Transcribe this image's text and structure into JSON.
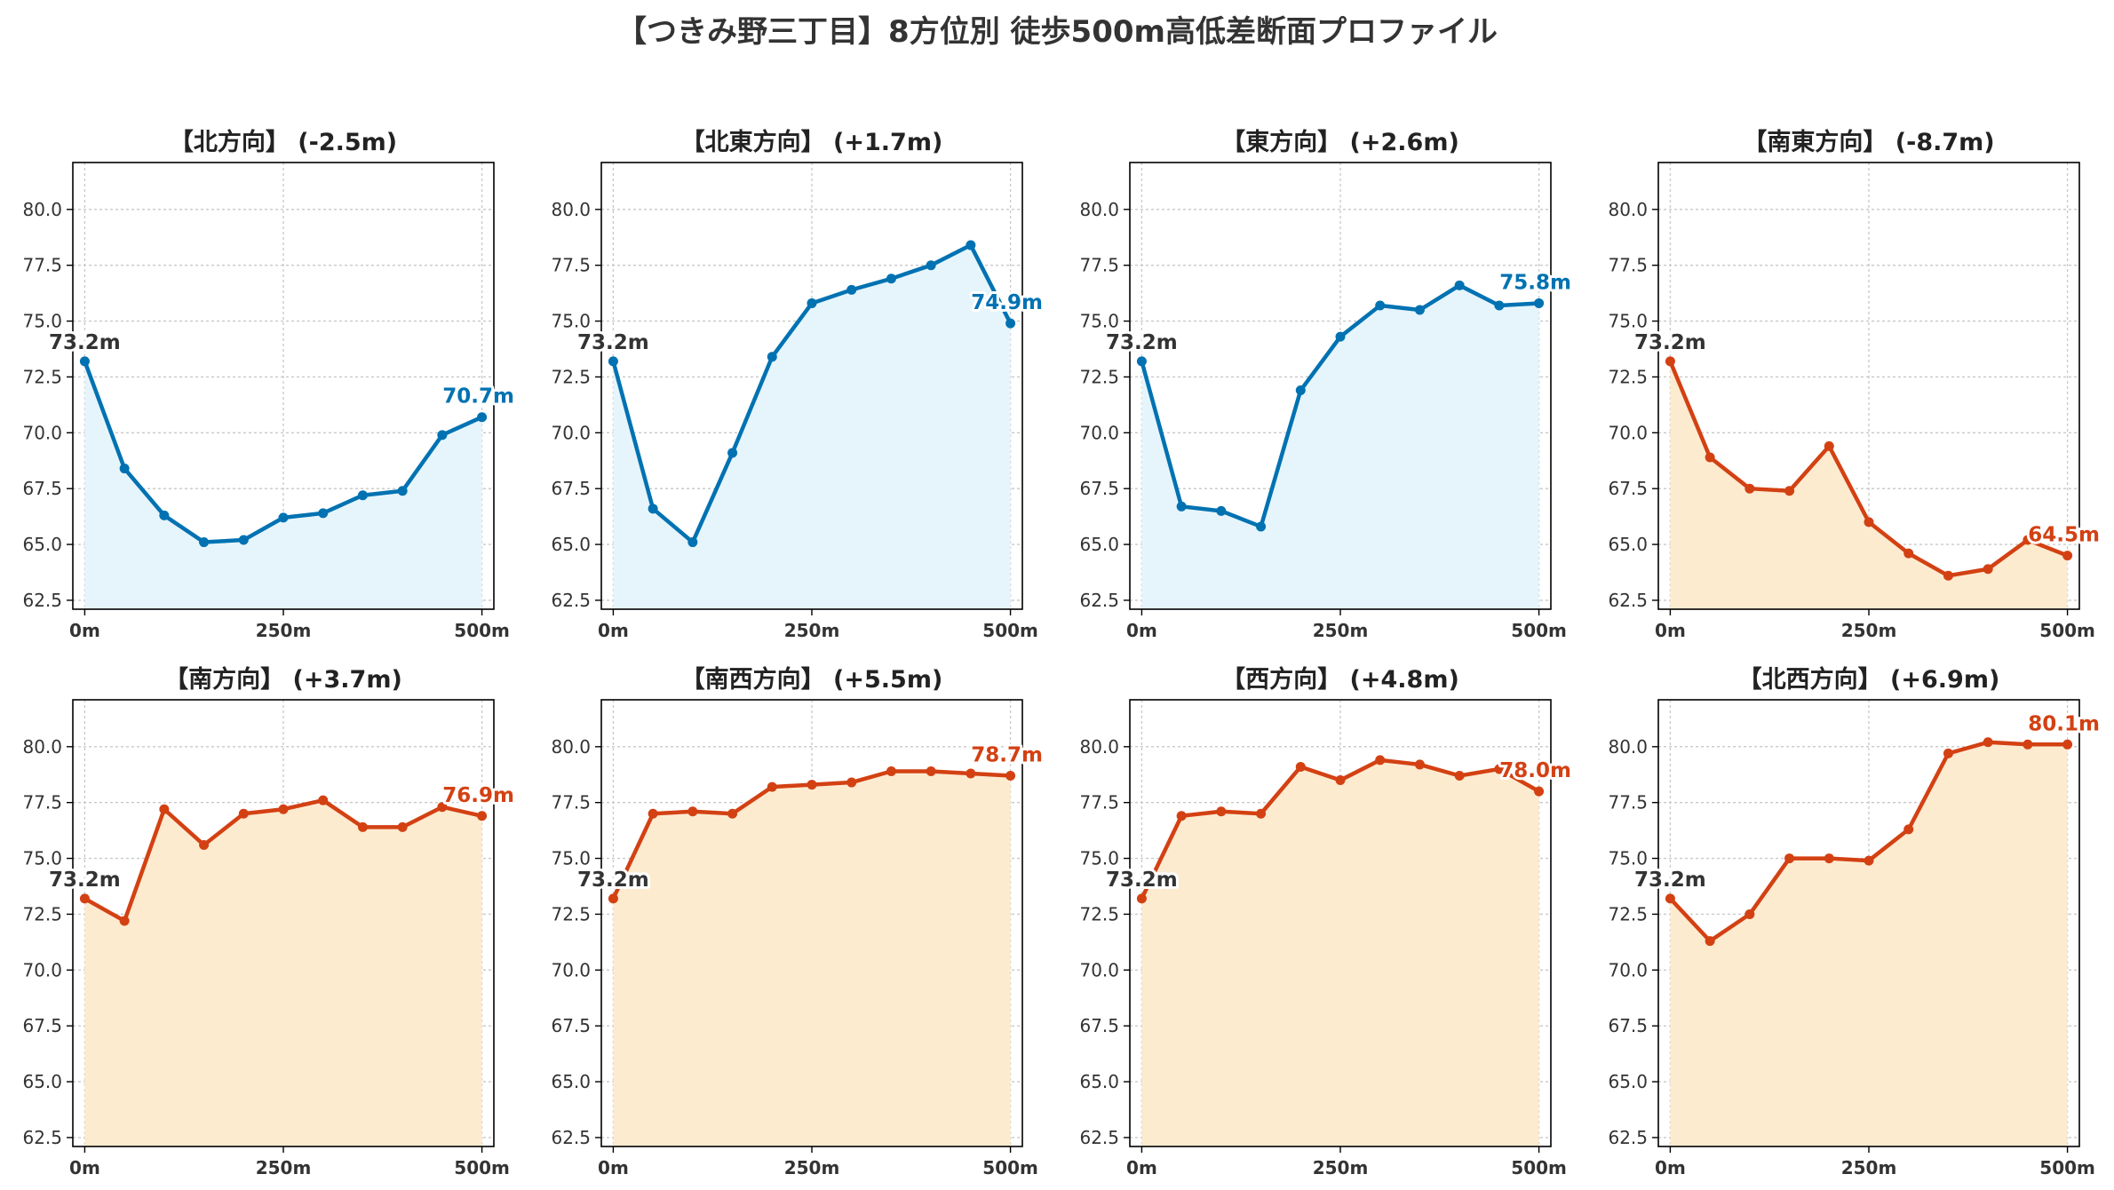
{
  "title": "【つきみ野三丁目】8方位別 徒歩500m高低差断面プロファイル",
  "colors": {
    "up_line": "#0072b2",
    "up_fill": "#e6f5fb",
    "down_line": "#d34113",
    "down_fill": "#fdebd0",
    "start_label": "#333333",
    "grid": "#c8c8c8"
  },
  "chart_data": [
    {
      "type": "area",
      "title": "【北方向】 (-2.5m)",
      "color": "up",
      "x": [
        0,
        50,
        100,
        150,
        200,
        250,
        300,
        350,
        400,
        450,
        500
      ],
      "values": [
        73.2,
        68.4,
        66.3,
        65.1,
        65.2,
        66.2,
        66.4,
        67.2,
        67.4,
        69.9,
        70.7
      ],
      "start_label": "73.2m",
      "end_label": "70.7m",
      "xlim": [
        -15,
        515
      ],
      "ylim": [
        62.1,
        82.1
      ],
      "xticks": [
        0,
        250,
        500
      ],
      "xtick_labels": [
        "0m",
        "250m",
        "500m"
      ],
      "yticks": [
        62.5,
        65,
        67.5,
        70,
        72.5,
        75,
        77.5,
        80
      ],
      "ytick_labels": [
        "62.5",
        "65.0",
        "67.5",
        "70.0",
        "72.5",
        "75.0",
        "77.5",
        "80.0"
      ],
      "grid": true
    },
    {
      "type": "area",
      "title": "【北東方向】 (+1.7m)",
      "color": "up",
      "x": [
        0,
        50,
        100,
        150,
        200,
        250,
        300,
        350,
        400,
        450,
        500
      ],
      "values": [
        73.2,
        66.6,
        65.1,
        69.1,
        73.4,
        75.8,
        76.4,
        76.9,
        77.5,
        78.4,
        74.9
      ],
      "start_label": "73.2m",
      "end_label": "74.9m",
      "xlim": [
        -15,
        515
      ],
      "ylim": [
        62.1,
        82.1
      ],
      "xticks": [
        0,
        250,
        500
      ],
      "xtick_labels": [
        "0m",
        "250m",
        "500m"
      ],
      "yticks": [
        62.5,
        65,
        67.5,
        70,
        72.5,
        75,
        77.5,
        80
      ],
      "ytick_labels": [
        "62.5",
        "65.0",
        "67.5",
        "70.0",
        "72.5",
        "75.0",
        "77.5",
        "80.0"
      ],
      "grid": true
    },
    {
      "type": "area",
      "title": "【東方向】 (+2.6m)",
      "color": "up",
      "x": [
        0,
        50,
        100,
        150,
        200,
        250,
        300,
        350,
        400,
        450,
        500
      ],
      "values": [
        73.2,
        66.7,
        66.5,
        65.8,
        71.9,
        74.3,
        75.7,
        75.5,
        76.6,
        75.7,
        75.8
      ],
      "start_label": "73.2m",
      "end_label": "75.8m",
      "xlim": [
        -15,
        515
      ],
      "ylim": [
        62.1,
        82.1
      ],
      "xticks": [
        0,
        250,
        500
      ],
      "xtick_labels": [
        "0m",
        "250m",
        "500m"
      ],
      "yticks": [
        62.5,
        65,
        67.5,
        70,
        72.5,
        75,
        77.5,
        80
      ],
      "ytick_labels": [
        "62.5",
        "65.0",
        "67.5",
        "70.0",
        "72.5",
        "75.0",
        "77.5",
        "80.0"
      ],
      "grid": true
    },
    {
      "type": "area",
      "title": "【南東方向】 (-8.7m)",
      "color": "down",
      "x": [
        0,
        50,
        100,
        150,
        200,
        250,
        300,
        350,
        400,
        450,
        500
      ],
      "values": [
        73.2,
        68.9,
        67.5,
        67.4,
        69.4,
        66.0,
        64.6,
        63.6,
        63.9,
        65.2,
        64.5
      ],
      "start_label": "73.2m",
      "end_label": "64.5m",
      "xlim": [
        -15,
        515
      ],
      "ylim": [
        62.1,
        82.1
      ],
      "xticks": [
        0,
        250,
        500
      ],
      "xtick_labels": [
        "0m",
        "250m",
        "500m"
      ],
      "yticks": [
        62.5,
        65,
        67.5,
        70,
        72.5,
        75,
        77.5,
        80
      ],
      "ytick_labels": [
        "62.5",
        "65.0",
        "67.5",
        "70.0",
        "72.5",
        "75.0",
        "77.5",
        "80.0"
      ],
      "grid": true
    },
    {
      "type": "area",
      "title": "【南方向】 (+3.7m)",
      "color": "down",
      "x": [
        0,
        50,
        100,
        150,
        200,
        250,
        300,
        350,
        400,
        450,
        500
      ],
      "values": [
        73.2,
        72.2,
        77.2,
        75.6,
        77.0,
        77.2,
        77.6,
        76.4,
        76.4,
        77.3,
        76.9
      ],
      "start_label": "73.2m",
      "end_label": "76.9m",
      "xlim": [
        -15,
        515
      ],
      "ylim": [
        62.1,
        82.1
      ],
      "xticks": [
        0,
        250,
        500
      ],
      "xtick_labels": [
        "0m",
        "250m",
        "500m"
      ],
      "yticks": [
        62.5,
        65,
        67.5,
        70,
        72.5,
        75,
        77.5,
        80
      ],
      "ytick_labels": [
        "62.5",
        "65.0",
        "67.5",
        "70.0",
        "72.5",
        "75.0",
        "77.5",
        "80.0"
      ],
      "grid": true
    },
    {
      "type": "area",
      "title": "【南西方向】 (+5.5m)",
      "color": "down",
      "x": [
        0,
        50,
        100,
        150,
        200,
        250,
        300,
        350,
        400,
        450,
        500
      ],
      "values": [
        73.2,
        77.0,
        77.1,
        77.0,
        78.2,
        78.3,
        78.4,
        78.9,
        78.9,
        78.8,
        78.7
      ],
      "start_label": "73.2m",
      "end_label": "78.7m",
      "xlim": [
        -15,
        515
      ],
      "ylim": [
        62.1,
        82.1
      ],
      "xticks": [
        0,
        250,
        500
      ],
      "xtick_labels": [
        "0m",
        "250m",
        "500m"
      ],
      "yticks": [
        62.5,
        65,
        67.5,
        70,
        72.5,
        75,
        77.5,
        80
      ],
      "ytick_labels": [
        "62.5",
        "65.0",
        "67.5",
        "70.0",
        "72.5",
        "75.0",
        "77.5",
        "80.0"
      ],
      "grid": true
    },
    {
      "type": "area",
      "title": "【西方向】 (+4.8m)",
      "color": "down",
      "x": [
        0,
        50,
        100,
        150,
        200,
        250,
        300,
        350,
        400,
        450,
        500
      ],
      "values": [
        73.2,
        76.9,
        77.1,
        77.0,
        79.1,
        78.5,
        79.4,
        79.2,
        78.7,
        79.0,
        78.0
      ],
      "start_label": "73.2m",
      "end_label": "78.0m",
      "xlim": [
        -15,
        515
      ],
      "ylim": [
        62.1,
        82.1
      ],
      "xticks": [
        0,
        250,
        500
      ],
      "xtick_labels": [
        "0m",
        "250m",
        "500m"
      ],
      "yticks": [
        62.5,
        65,
        67.5,
        70,
        72.5,
        75,
        77.5,
        80
      ],
      "ytick_labels": [
        "62.5",
        "65.0",
        "67.5",
        "70.0",
        "72.5",
        "75.0",
        "77.5",
        "80.0"
      ],
      "grid": true
    },
    {
      "type": "area",
      "title": "【北西方向】 (+6.9m)",
      "color": "down",
      "x": [
        0,
        50,
        100,
        150,
        200,
        250,
        300,
        350,
        400,
        450,
        500
      ],
      "values": [
        73.2,
        71.3,
        72.5,
        75.0,
        75.0,
        74.9,
        76.3,
        79.7,
        80.2,
        80.1,
        80.1
      ],
      "start_label": "73.2m",
      "end_label": "80.1m",
      "xlim": [
        -15,
        515
      ],
      "ylim": [
        62.1,
        82.1
      ],
      "xticks": [
        0,
        250,
        500
      ],
      "xtick_labels": [
        "0m",
        "250m",
        "500m"
      ],
      "yticks": [
        62.5,
        65,
        67.5,
        70,
        72.5,
        75,
        77.5,
        80
      ],
      "ytick_labels": [
        "62.5",
        "65.0",
        "67.5",
        "70.0",
        "72.5",
        "75.0",
        "77.5",
        "80.0"
      ],
      "grid": true
    }
  ]
}
